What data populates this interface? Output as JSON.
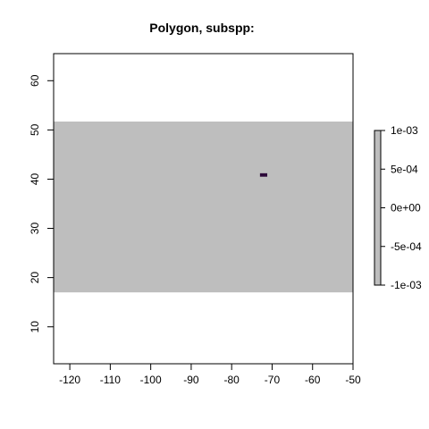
{
  "chart_data": {
    "type": "heatmap",
    "title": "Polygon, subspp:",
    "xlabel": "",
    "ylabel": "",
    "xlim": [
      -124,
      -50
    ],
    "ylim": [
      2.5,
      65.5
    ],
    "x_ticks": [
      -120,
      -110,
      -100,
      -90,
      -80,
      -70,
      -60,
      -50
    ],
    "x_tick_labels": [
      "-120",
      "-110",
      "-100",
      "-90",
      "-80",
      "-70",
      "-60",
      "-50"
    ],
    "y_ticks": [
      10,
      20,
      30,
      40,
      50,
      60
    ],
    "y_tick_labels": [
      "10",
      "20",
      "30",
      "40",
      "50",
      "60"
    ],
    "raster_extent": {
      "xmin": -124,
      "xmax": -50,
      "ymin": 17,
      "ymax": 51.7
    },
    "raster_fill_color": "#bebebe",
    "highlight_cell": {
      "xmin": -73,
      "xmax": -71.2,
      "ymin": 40.5,
      "ymax": 41.2,
      "color": "#2d0a3a"
    },
    "legend": {
      "placement": "right",
      "min": -0.001,
      "max": 0.001,
      "ticks": [
        0.001,
        0.0005,
        0,
        -0.0005,
        -0.001
      ],
      "tick_labels": [
        "1e-03",
        "5e-04",
        "0e+00",
        "-5e-04",
        "-1e-03"
      ],
      "color": "#bebebe"
    }
  }
}
